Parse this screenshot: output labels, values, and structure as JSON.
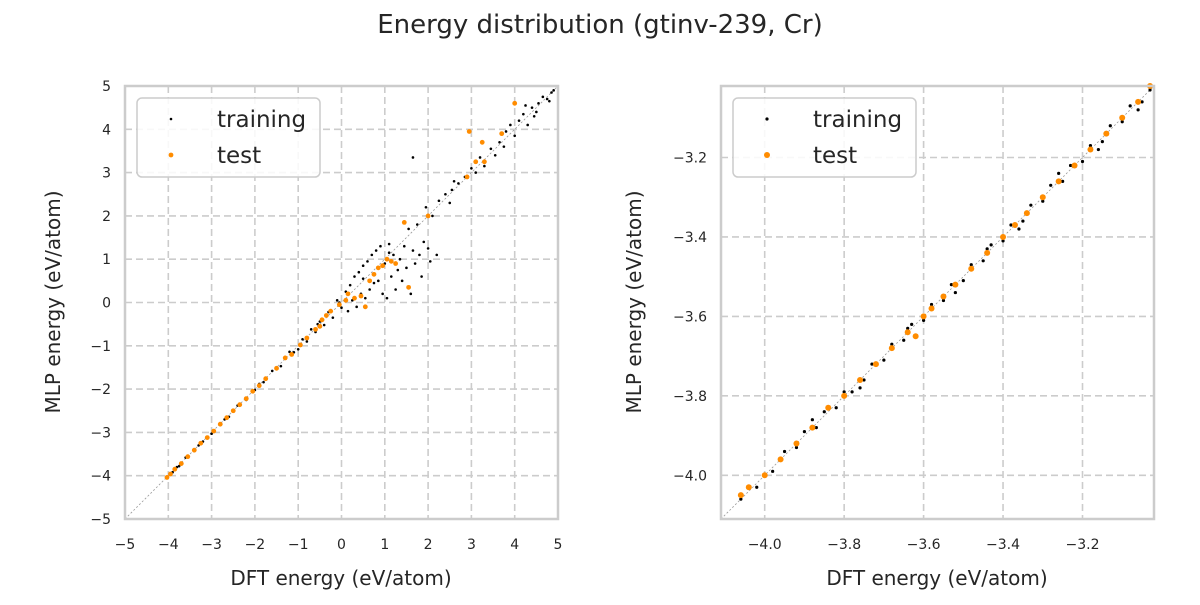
{
  "figure": {
    "title": "Energy distribution (gtinv-239, Cr)"
  },
  "colors": {
    "training": "#000000",
    "test": "#ff8c00",
    "grid": "#cccccc",
    "frame": "#cccccc",
    "diagonal": "#999999"
  },
  "chart_data": [
    {
      "type": "scatter",
      "xlabel": "DFT energy (eV/atom)",
      "ylabel": "MLP energy (eV/atom)",
      "xlim": [
        -5,
        5
      ],
      "ylim": [
        -5,
        5
      ],
      "xticks": [
        -5,
        -4,
        -3,
        -2,
        -1,
        0,
        1,
        2,
        3,
        4,
        5
      ],
      "yticks": [
        -5,
        -4,
        -3,
        -2,
        -1,
        0,
        1,
        2,
        3,
        4,
        5
      ],
      "xtick_labels": [
        "−5",
        "−4",
        "−3",
        "−2",
        "−1",
        "0",
        "1",
        "2",
        "3",
        "4",
        "5"
      ],
      "ytick_labels": [
        "−5",
        "−4",
        "−3",
        "−2",
        "−1",
        "0",
        "1",
        "2",
        "3",
        "4",
        "5"
      ],
      "grid": true,
      "legend_position": "top-left",
      "diagonal": true,
      "series": [
        {
          "name": "training",
          "color": "#000000",
          "points": [
            [
              -4.02,
              -4.03
            ],
            [
              -3.9,
              -3.92
            ],
            [
              -3.75,
              -3.78
            ],
            [
              -3.6,
              -3.58
            ],
            [
              -3.4,
              -3.43
            ],
            [
              -3.2,
              -3.21
            ],
            [
              -3.0,
              -3.03
            ],
            [
              -2.8,
              -2.79
            ],
            [
              -2.6,
              -2.64
            ],
            [
              -2.4,
              -2.38
            ],
            [
              -2.2,
              -2.25
            ],
            [
              -2.0,
              -2.02
            ],
            [
              -1.8,
              -1.84
            ],
            [
              -1.6,
              -1.58
            ],
            [
              -1.4,
              -1.47
            ],
            [
              -1.2,
              -1.14
            ],
            [
              -1.0,
              -1.08
            ],
            [
              -0.9,
              -0.85
            ],
            [
              -0.8,
              -0.9
            ],
            [
              -0.7,
              -0.62
            ],
            [
              -0.6,
              -0.68
            ],
            [
              -0.5,
              -0.44
            ],
            [
              -0.4,
              -0.52
            ],
            [
              -0.3,
              -0.22
            ],
            [
              -0.2,
              -0.35
            ],
            [
              -0.1,
              0.05
            ],
            [
              0.0,
              -0.12
            ],
            [
              0.1,
              0.25
            ],
            [
              0.15,
              -0.2
            ],
            [
              0.2,
              0.4
            ],
            [
              0.25,
              0.05
            ],
            [
              0.3,
              0.6
            ],
            [
              0.35,
              -0.1
            ],
            [
              0.4,
              0.7
            ],
            [
              0.45,
              0.2
            ],
            [
              0.5,
              0.85
            ],
            [
              0.55,
              0.1
            ],
            [
              0.6,
              0.95
            ],
            [
              0.65,
              0.3
            ],
            [
              0.7,
              1.1
            ],
            [
              0.75,
              0.45
            ],
            [
              0.8,
              1.2
            ],
            [
              0.85,
              0.5
            ],
            [
              0.9,
              1.3
            ],
            [
              0.95,
              0.2
            ],
            [
              1.0,
              0.9
            ],
            [
              1.05,
              0.1
            ],
            [
              1.1,
              1.35
            ],
            [
              1.15,
              0.6
            ],
            [
              1.2,
              1.1
            ],
            [
              1.25,
              0.3
            ],
            [
              1.3,
              0.75
            ],
            [
              1.35,
              1.0
            ],
            [
              1.4,
              0.5
            ],
            [
              1.45,
              1.3
            ],
            [
              1.5,
              0.8
            ],
            [
              1.55,
              1.7
            ],
            [
              1.6,
              0.2
            ],
            [
              1.65,
              1.2
            ],
            [
              1.7,
              0.9
            ],
            [
              1.75,
              1.8
            ],
            [
              1.8,
              1.1
            ],
            [
              1.85,
              0.6
            ],
            [
              1.9,
              1.4
            ],
            [
              2.0,
              1.25
            ],
            [
              2.1,
              2.0
            ],
            [
              2.2,
              1.1
            ],
            [
              2.05,
              0.95
            ],
            [
              1.95,
              2.2
            ],
            [
              2.25,
              2.35
            ],
            [
              2.4,
              2.5
            ],
            [
              2.55,
              2.6
            ],
            [
              2.7,
              2.75
            ],
            [
              2.85,
              2.9
            ],
            [
              3.0,
              3.1
            ],
            [
              3.1,
              3.0
            ],
            [
              3.2,
              3.35
            ],
            [
              3.3,
              3.15
            ],
            [
              3.45,
              3.55
            ],
            [
              3.55,
              3.4
            ],
            [
              3.65,
              3.7
            ],
            [
              3.75,
              3.6
            ],
            [
              3.8,
              3.95
            ],
            [
              3.9,
              4.1
            ],
            [
              4.0,
              3.85
            ],
            [
              4.1,
              4.2
            ],
            [
              4.2,
              4.35
            ],
            [
              4.3,
              4.1
            ],
            [
              4.4,
              4.5
            ],
            [
              4.5,
              4.4
            ],
            [
              4.55,
              4.6
            ],
            [
              4.65,
              4.75
            ],
            [
              4.75,
              4.7
            ],
            [
              4.85,
              4.85
            ],
            [
              4.9,
              4.9
            ],
            [
              4.8,
              4.65
            ],
            [
              4.45,
              4.3
            ],
            [
              4.25,
              4.55
            ],
            [
              2.5,
              2.3
            ],
            [
              2.6,
              2.8
            ],
            [
              1.65,
              3.35
            ],
            [
              1.1,
              1.15
            ],
            [
              0.5,
              0.55
            ],
            [
              -0.05,
              0.0
            ],
            [
              -0.55,
              -0.5
            ],
            [
              -1.1,
              -1.15
            ],
            [
              -1.9,
              -1.88
            ],
            [
              -2.7,
              -2.7
            ],
            [
              -3.3,
              -3.3
            ],
            [
              -3.8,
              -3.8
            ]
          ]
        },
        {
          "name": "test",
          "color": "#ff8c00",
          "points": [
            [
              -4.03,
              -4.04
            ],
            [
              -3.95,
              -3.96
            ],
            [
              -3.85,
              -3.85
            ],
            [
              -3.7,
              -3.72
            ],
            [
              -3.55,
              -3.56
            ],
            [
              -3.4,
              -3.41
            ],
            [
              -3.25,
              -3.25
            ],
            [
              -3.1,
              -3.12
            ],
            [
              -2.95,
              -2.97
            ],
            [
              -2.8,
              -2.81
            ],
            [
              -2.65,
              -2.66
            ],
            [
              -2.5,
              -2.5
            ],
            [
              -2.35,
              -2.36
            ],
            [
              -2.2,
              -2.22
            ],
            [
              -2.05,
              -2.05
            ],
            [
              -1.9,
              -1.92
            ],
            [
              -1.75,
              -1.76
            ],
            [
              -1.5,
              -1.52
            ],
            [
              -1.3,
              -1.28
            ],
            [
              -1.15,
              -1.2
            ],
            [
              -0.95,
              -0.98
            ],
            [
              -0.8,
              -0.82
            ],
            [
              -0.6,
              -0.62
            ],
            [
              -0.5,
              -0.55
            ],
            [
              -0.35,
              -0.3
            ],
            [
              -0.25,
              -0.2
            ],
            [
              -0.05,
              -0.05
            ],
            [
              0.1,
              0.05
            ],
            [
              0.3,
              0.1
            ],
            [
              0.45,
              0.15
            ],
            [
              0.55,
              -0.1
            ],
            [
              0.65,
              0.5
            ],
            [
              0.75,
              0.65
            ],
            [
              0.85,
              0.8
            ],
            [
              0.95,
              0.85
            ],
            [
              1.05,
              1.0
            ],
            [
              1.15,
              0.95
            ],
            [
              1.25,
              0.9
            ],
            [
              1.45,
              1.85
            ],
            [
              1.55,
              0.35
            ],
            [
              2.0,
              2.0
            ],
            [
              2.9,
              2.9
            ],
            [
              2.95,
              3.95
            ],
            [
              3.1,
              3.25
            ],
            [
              3.25,
              3.7
            ],
            [
              3.3,
              3.25
            ],
            [
              3.7,
              3.9
            ],
            [
              4.0,
              4.6
            ],
            [
              0.15,
              0.2
            ],
            [
              -0.45,
              -0.4
            ]
          ]
        }
      ]
    },
    {
      "type": "scatter",
      "xlabel": "DFT energy (eV/atom)",
      "ylabel": "MLP energy (eV/atom)",
      "xlim": [
        -4.11,
        -3.02
      ],
      "ylim": [
        -4.11,
        -3.02
      ],
      "xticks": [
        -4.0,
        -3.8,
        -3.6,
        -3.4,
        -3.2
      ],
      "yticks": [
        -4.0,
        -3.8,
        -3.6,
        -3.4,
        -3.2
      ],
      "xtick_labels": [
        "−4.0",
        "−3.8",
        "−3.6",
        "−3.4",
        "−3.2"
      ],
      "ytick_labels": [
        "−4.0",
        "−3.8",
        "−3.6",
        "−3.4",
        "−3.2"
      ],
      "grid": true,
      "legend_position": "top-left",
      "diagonal": true,
      "series": [
        {
          "name": "training",
          "color": "#000000",
          "points": [
            [
              -4.06,
              -4.06
            ],
            [
              -4.02,
              -4.03
            ],
            [
              -3.98,
              -3.99
            ],
            [
              -3.95,
              -3.94
            ],
            [
              -3.92,
              -3.93
            ],
            [
              -3.9,
              -3.89
            ],
            [
              -3.87,
              -3.88
            ],
            [
              -3.85,
              -3.84
            ],
            [
              -3.82,
              -3.83
            ],
            [
              -3.8,
              -3.79
            ],
            [
              -3.78,
              -3.79
            ],
            [
              -3.75,
              -3.76
            ],
            [
              -3.73,
              -3.72
            ],
            [
              -3.7,
              -3.71
            ],
            [
              -3.68,
              -3.67
            ],
            [
              -3.65,
              -3.66
            ],
            [
              -3.63,
              -3.62
            ],
            [
              -3.6,
              -3.61
            ],
            [
              -3.58,
              -3.57
            ],
            [
              -3.55,
              -3.56
            ],
            [
              -3.53,
              -3.52
            ],
            [
              -3.5,
              -3.51
            ],
            [
              -3.48,
              -3.47
            ],
            [
              -3.45,
              -3.46
            ],
            [
              -3.43,
              -3.42
            ],
            [
              -3.4,
              -3.41
            ],
            [
              -3.38,
              -3.37
            ],
            [
              -3.35,
              -3.36
            ],
            [
              -3.33,
              -3.32
            ],
            [
              -3.3,
              -3.31
            ],
            [
              -3.28,
              -3.27
            ],
            [
              -3.25,
              -3.26
            ],
            [
              -3.23,
              -3.22
            ],
            [
              -3.2,
              -3.21
            ],
            [
              -3.18,
              -3.17
            ],
            [
              -3.15,
              -3.16
            ],
            [
              -3.13,
              -3.12
            ],
            [
              -3.1,
              -3.11
            ],
            [
              -3.08,
              -3.07
            ],
            [
              -3.05,
              -3.06
            ],
            [
              -3.03,
              -3.03
            ],
            [
              -3.88,
              -3.86
            ],
            [
              -3.76,
              -3.78
            ],
            [
              -3.64,
              -3.63
            ],
            [
              -3.52,
              -3.54
            ],
            [
              -3.44,
              -3.43
            ],
            [
              -3.36,
              -3.38
            ],
            [
              -3.26,
              -3.24
            ],
            [
              -3.16,
              -3.18
            ],
            [
              -3.06,
              -3.08
            ]
          ]
        },
        {
          "name": "test",
          "color": "#ff8c00",
          "points": [
            [
              -4.06,
              -4.05
            ],
            [
              -4.04,
              -4.03
            ],
            [
              -4.0,
              -4.0
            ],
            [
              -3.96,
              -3.96
            ],
            [
              -3.92,
              -3.92
            ],
            [
              -3.88,
              -3.88
            ],
            [
              -3.84,
              -3.83
            ],
            [
              -3.8,
              -3.8
            ],
            [
              -3.76,
              -3.76
            ],
            [
              -3.72,
              -3.72
            ],
            [
              -3.68,
              -3.68
            ],
            [
              -3.64,
              -3.64
            ],
            [
              -3.62,
              -3.65
            ],
            [
              -3.6,
              -3.6
            ],
            [
              -3.58,
              -3.58
            ],
            [
              -3.55,
              -3.55
            ],
            [
              -3.52,
              -3.52
            ],
            [
              -3.48,
              -3.48
            ],
            [
              -3.44,
              -3.44
            ],
            [
              -3.4,
              -3.4
            ],
            [
              -3.37,
              -3.37
            ],
            [
              -3.34,
              -3.34
            ],
            [
              -3.3,
              -3.3
            ],
            [
              -3.26,
              -3.26
            ],
            [
              -3.22,
              -3.22
            ],
            [
              -3.18,
              -3.18
            ],
            [
              -3.14,
              -3.14
            ],
            [
              -3.1,
              -3.1
            ],
            [
              -3.06,
              -3.06
            ],
            [
              -3.03,
              -3.02
            ]
          ]
        }
      ]
    }
  ]
}
